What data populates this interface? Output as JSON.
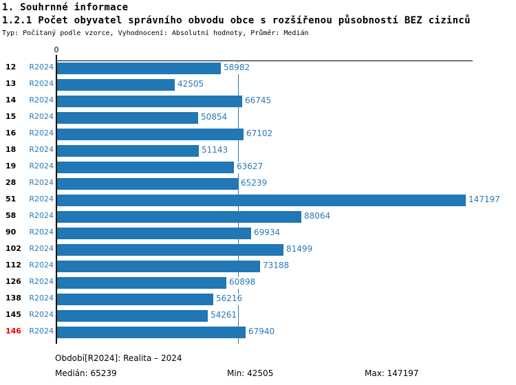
{
  "header": {
    "title": "1. Souhrnné informace",
    "subtitle": "1.2.1 Počet obyvatel správního obvodu obce s rozšířenou působností BEZ cizinců",
    "meta": "Typ: Počítaný podle vzorce, Vyhodnocení: Absolutní hodnoty, Průměr: Medián"
  },
  "chart_data": {
    "type": "bar",
    "orientation": "horizontal",
    "title": "1.2.1 Počet obyvatel správního obvodu obce s rozšířenou působností BEZ cizinců",
    "categories": [
      "12",
      "13",
      "14",
      "15",
      "16",
      "18",
      "19",
      "28",
      "51",
      "58",
      "90",
      "102",
      "112",
      "126",
      "138",
      "145",
      "146"
    ],
    "series": [
      {
        "name": "R2024",
        "values": [
          58982,
          42505,
          66745,
          50854,
          67102,
          51143,
          63627,
          65239,
          147197,
          88064,
          69934,
          81499,
          73188,
          60898,
          56216,
          54261,
          67940
        ]
      }
    ],
    "row_series_label": "R2024",
    "highlighted_category": "146",
    "axis_zero_label": "0",
    "xlim": [
      0,
      150000
    ],
    "median_value": 65239,
    "grid": false,
    "legend": false,
    "value_labels": true
  },
  "footer": {
    "period": "Období[R2024]: Realita – 2024",
    "median": "Medián: 65239",
    "min": "Min: 42505",
    "max": "Max: 147197"
  },
  "colors": {
    "bar": "#2277B5",
    "blue_text": "#2878B8",
    "median_line": "#2277B5",
    "highlight_red": "#EE0000",
    "axis": "#000000"
  }
}
